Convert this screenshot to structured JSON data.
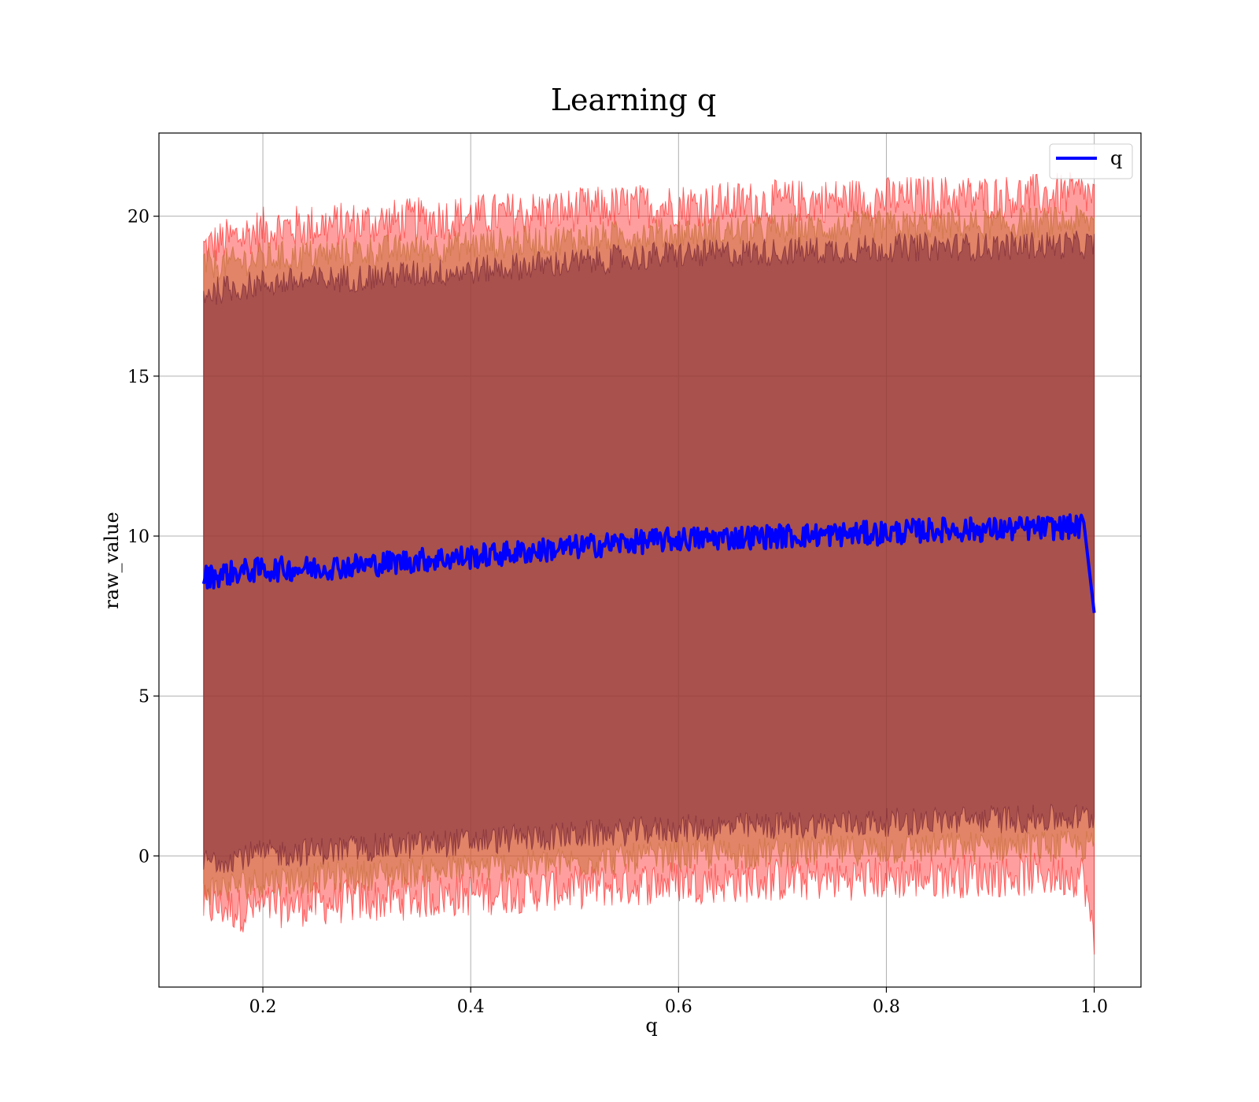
{
  "chart_data": {
    "type": "line",
    "title": "Learning q",
    "xlabel": "q",
    "ylabel": "raw_value",
    "xlim": [
      0.1,
      1.045
    ],
    "ylim": [
      -4.1,
      22.6
    ],
    "x_ticks": [
      0.2,
      0.4,
      0.6,
      0.8,
      1.0
    ],
    "x_tick_labels": [
      "0.2",
      "0.4",
      "0.6",
      "0.8",
      "1.0"
    ],
    "y_ticks": [
      0,
      5,
      10,
      15,
      20
    ],
    "y_tick_labels": [
      "0",
      "5",
      "10",
      "15",
      "20"
    ],
    "grid": true,
    "legend_position": "top-right",
    "legend_entries": [
      "q"
    ],
    "colors": {
      "line": "#0000ff",
      "outer_band": "#ff0000",
      "inner_band": "#7a2838",
      "mid_band": "#c8703a",
      "grid": "#b0b0b0"
    },
    "series": [
      {
        "name": "q",
        "style": "line",
        "x": [
          0.143,
          0.16,
          0.18,
          0.2,
          0.25,
          0.3,
          0.35,
          0.4,
          0.45,
          0.5,
          0.55,
          0.6,
          0.65,
          0.7,
          0.75,
          0.8,
          0.85,
          0.9,
          0.95,
          0.99,
          1.0
        ],
        "mean": [
          8.7,
          8.8,
          8.9,
          8.95,
          9.0,
          9.1,
          9.25,
          9.35,
          9.5,
          9.65,
          9.8,
          9.9,
          9.95,
          10.0,
          10.05,
          10.1,
          10.2,
          10.2,
          10.25,
          10.3,
          7.6
        ]
      },
      {
        "style": "band",
        "label_shown": false,
        "x": [
          0.143,
          0.16,
          0.18,
          0.2,
          0.25,
          0.3,
          0.35,
          0.4,
          0.45,
          0.5,
          0.55,
          0.6,
          0.65,
          0.7,
          0.75,
          0.8,
          0.85,
          0.9,
          0.95,
          0.99,
          1.0
        ],
        "upper": [
          19.0,
          19.2,
          19.4,
          19.6,
          19.7,
          19.8,
          19.9,
          20.0,
          20.1,
          20.2,
          20.3,
          20.35,
          20.4,
          20.45,
          20.5,
          20.55,
          20.6,
          20.6,
          20.65,
          20.7,
          20.6
        ],
        "lower": [
          -1.6,
          -1.6,
          -1.7,
          -1.6,
          -1.5,
          -1.4,
          -1.3,
          -1.2,
          -1.1,
          -1.0,
          -0.9,
          -0.8,
          -0.8,
          -0.75,
          -0.7,
          -0.7,
          -0.65,
          -0.6,
          -0.6,
          -0.6,
          -2.8
        ]
      },
      {
        "style": "band",
        "label_shown": false,
        "x": [
          0.143,
          0.16,
          0.18,
          0.2,
          0.25,
          0.3,
          0.35,
          0.4,
          0.45,
          0.5,
          0.55,
          0.6,
          0.65,
          0.7,
          0.75,
          0.8,
          0.85,
          0.9,
          0.95,
          0.99,
          1.0
        ],
        "upper": [
          18.5,
          18.5,
          18.6,
          18.7,
          18.8,
          18.9,
          19.0,
          19.1,
          19.2,
          19.3,
          19.4,
          19.5,
          19.55,
          19.6,
          19.65,
          19.7,
          19.75,
          19.75,
          19.8,
          19.85,
          19.8
        ],
        "lower": [
          -1.1,
          -1.0,
          -0.9,
          -0.8,
          -0.7,
          -0.6,
          -0.5,
          -0.4,
          -0.3,
          -0.2,
          -0.1,
          0.0,
          0.05,
          0.1,
          0.15,
          0.2,
          0.25,
          0.3,
          0.3,
          0.3,
          0.3
        ]
      },
      {
        "style": "band",
        "label_shown": false,
        "x": [
          0.143,
          0.16,
          0.18,
          0.2,
          0.25,
          0.3,
          0.35,
          0.4,
          0.45,
          0.5,
          0.55,
          0.6,
          0.65,
          0.7,
          0.75,
          0.8,
          0.85,
          0.9,
          0.95,
          0.99,
          1.0
        ],
        "upper": [
          17.6,
          17.7,
          17.8,
          17.9,
          18.0,
          18.1,
          18.2,
          18.3,
          18.45,
          18.55,
          18.7,
          18.8,
          18.85,
          18.9,
          18.95,
          19.0,
          19.05,
          19.05,
          19.1,
          19.1,
          19.1
        ],
        "lower": [
          -0.2,
          -0.1,
          0.0,
          0.05,
          0.15,
          0.25,
          0.35,
          0.45,
          0.55,
          0.65,
          0.75,
          0.85,
          0.9,
          0.95,
          1.0,
          1.05,
          1.1,
          1.15,
          1.15,
          1.2,
          1.2
        ]
      }
    ]
  }
}
